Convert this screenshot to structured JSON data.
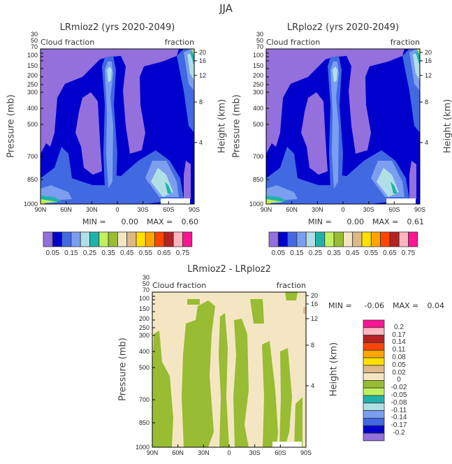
{
  "figure_title": "JJA",
  "colors": {
    "cloud_levels_fill": [
      "#9370DB",
      "#0000CD",
      "#4169E1",
      "#7B9EF0",
      "#B0E0E6",
      "#20B2AA",
      "#C0F060",
      "#98BC32",
      "#F5E6C3",
      "#DEB887",
      "#FFE000",
      "#FFA500",
      "#FF4500",
      "#B22222",
      "#FFB6C1",
      "#FF1493"
    ]
  },
  "chart_data": [
    {
      "type": "heatmap",
      "subtype": "filled-contour latitude-pressure cross section",
      "title": "LRmioz2 (yrs 2020-2049)",
      "left_string": "Cloud fraction",
      "right_string": "fraction",
      "ylabel": "Pressure (mb)",
      "ylabel_right": "Height (km)",
      "x_ticks": [
        "90N",
        "60N",
        "30N",
        "0",
        "30S",
        "60S",
        "90S"
      ],
      "y_ticks": [
        "30",
        "50",
        "70",
        "100",
        "150",
        "200",
        "250",
        "300",
        "400",
        "500",
        "700",
        "850",
        "1000"
      ],
      "y_right_ticks": [
        "20",
        "16",
        "12",
        "8",
        "4"
      ],
      "min_label": "MIN =",
      "min_value": "0.00",
      "max_label": "MAX =",
      "max_value": "0.60",
      "colorbar_labels": [
        "0.05",
        "0.15",
        "0.25",
        "0.35",
        "0.45",
        "0.55",
        "0.65",
        "0.75"
      ],
      "levels": [
        0.05,
        0.1,
        0.15,
        0.2,
        0.25,
        0.3,
        0.35,
        0.4,
        0.45,
        0.5,
        0.55,
        0.6,
        0.65,
        0.7,
        0.75
      ]
    },
    {
      "type": "heatmap",
      "subtype": "filled-contour latitude-pressure cross section",
      "title": "LRploz2 (yrs 2020-2049)",
      "left_string": "Cloud fraction",
      "right_string": "fraction",
      "ylabel": "Pressure (mb)",
      "ylabel_right": "Height (km)",
      "x_ticks": [
        "90N",
        "60N",
        "30N",
        "0",
        "30S",
        "60S",
        "90S"
      ],
      "y_ticks": [
        "30",
        "50",
        "70",
        "100",
        "150",
        "200",
        "250",
        "300",
        "400",
        "500",
        "700",
        "850",
        "1000"
      ],
      "y_right_ticks": [
        "20",
        "16",
        "12",
        "8",
        "4"
      ],
      "min_label": "MIN =",
      "min_value": "0.00",
      "max_label": "MAX =",
      "max_value": "0.61",
      "colorbar_labels": [
        "0.05",
        "0.15",
        "0.25",
        "0.35",
        "0.45",
        "0.55",
        "0.65",
        "0.75"
      ],
      "levels": [
        0.05,
        0.1,
        0.15,
        0.2,
        0.25,
        0.3,
        0.35,
        0.4,
        0.45,
        0.5,
        0.55,
        0.6,
        0.65,
        0.7,
        0.75
      ]
    },
    {
      "type": "heatmap",
      "subtype": "filled-contour difference cross section",
      "title": "LRmioz2 - LRploz2",
      "left_string": "Cloud fraction",
      "right_string": "fraction",
      "ylabel": "Pressure (mb)",
      "ylabel_right": "Height (km)",
      "x_ticks": [
        "90N",
        "60N",
        "30N",
        "0",
        "30S",
        "60S",
        "90S"
      ],
      "y_ticks": [
        "30",
        "50",
        "70",
        "100",
        "150",
        "200",
        "250",
        "300",
        "400",
        "500",
        "700",
        "850",
        "1000"
      ],
      "y_right_ticks": [
        "20",
        "16",
        "12",
        "8",
        "4"
      ],
      "min_label": "MIN =",
      "min_value": "-0.06",
      "max_label": "MAX =",
      "max_value": "0.04",
      "colorbar_labels": [
        "0.2",
        "0.17",
        "0.14",
        "0.11",
        "0.08",
        "0.05",
        "0.02",
        "0",
        "-0.02",
        "-0.05",
        "-0.08",
        "-0.11",
        "-0.14",
        "-0.17",
        "-0.2"
      ],
      "levels": [
        -0.2,
        -0.17,
        -0.14,
        -0.11,
        -0.08,
        -0.05,
        -0.02,
        0,
        0.02,
        0.05,
        0.08,
        0.11,
        0.14,
        0.17,
        0.2
      ]
    }
  ]
}
